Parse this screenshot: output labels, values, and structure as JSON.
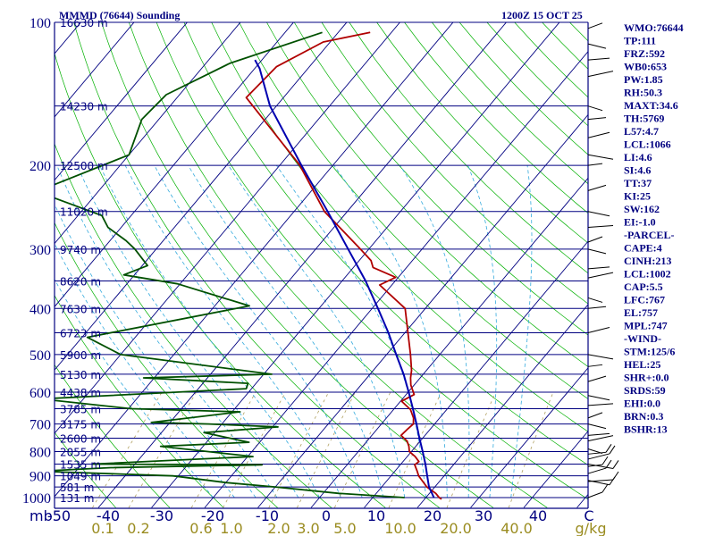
{
  "header": {
    "station": "MMMD (76644) Sounding",
    "time": "1200Z 15 OCT 25"
  },
  "colors": {
    "axis": "#000080",
    "isobar": "#000080",
    "isotherm": "#000080",
    "dry_adiabat": "#00b000",
    "moist_adiabat": "#33aadd",
    "mixing_ratio": "#b0a060",
    "temperature": "#b00000",
    "dewpoint": "#005000",
    "parcel": "#0000b0",
    "wind": "#000000"
  },
  "chart_data": {
    "type": "skew-t log-p",
    "pressure_axis": {
      "range_hpa": [
        1000,
        100
      ],
      "scale": "log",
      "ticks": [
        100,
        200,
        300,
        400,
        500,
        600,
        700,
        800,
        900,
        1000
      ],
      "unit_label": "mb"
    },
    "temperature_axis": {
      "ticks": [
        "-50",
        "-40",
        "-30",
        "-20",
        "-10",
        "0",
        "10",
        "20",
        "30",
        "40",
        "C"
      ],
      "unit": "C"
    },
    "mixing_ratio_axis": {
      "ticks": [
        "0.1",
        "0.2",
        "0.6",
        "1.0",
        "2.0",
        "3.0",
        "5.0",
        "10.0",
        "20.0",
        "40.0"
      ],
      "unit": "g/kg"
    },
    "height_labels": [
      {
        "p": 100,
        "label": "16630 m"
      },
      {
        "p": 150,
        "label": "14230 m"
      },
      {
        "p": 200,
        "label": "12500 m"
      },
      {
        "p": 250,
        "label": "11020 m"
      },
      {
        "p": 300,
        "label": "9740 m"
      },
      {
        "p": 350,
        "label": "8620 m"
      },
      {
        "p": 400,
        "label": "7630 m"
      },
      {
        "p": 450,
        "label": "6723 m"
      },
      {
        "p": 500,
        "label": "5900 m"
      },
      {
        "p": 550,
        "label": "5130 m"
      },
      {
        "p": 600,
        "label": "4438 m"
      },
      {
        "p": 650,
        "label": "3785 m"
      },
      {
        "p": 700,
        "label": "3175 m"
      },
      {
        "p": 750,
        "label": "2600 m"
      },
      {
        "p": 800,
        "label": "2055 m"
      },
      {
        "p": 850,
        "label": "1535 m"
      },
      {
        "p": 900,
        "label": "1049 m"
      },
      {
        "p": 950,
        "label": "581 m"
      },
      {
        "p": 1000,
        "label": "131 m"
      }
    ],
    "series": [
      {
        "key": "temperature",
        "points": [
          [
            105,
            -64
          ],
          [
            110,
            -71.3
          ],
          [
            124,
            -76.2
          ],
          [
            144,
            -77
          ],
          [
            200,
            -56.2
          ],
          [
            250,
            -44.3
          ],
          [
            300,
            -31.6
          ],
          [
            317,
            -27.8
          ],
          [
            328,
            -26.3
          ],
          [
            344,
            -20.5
          ],
          [
            357,
            -22.3
          ],
          [
            400,
            -13.8
          ],
          [
            500,
            -5.5
          ],
          [
            540,
            -2.8
          ],
          [
            560,
            -1.8
          ],
          [
            580,
            -0.6
          ],
          [
            607,
            1.5
          ],
          [
            627,
            0.2
          ],
          [
            653,
            3.2
          ],
          [
            680,
            5.1
          ],
          [
            700,
            6
          ],
          [
            720,
            5.7
          ],
          [
            740,
            5.5
          ],
          [
            760,
            7.5
          ],
          [
            780,
            8.7
          ],
          [
            800,
            9.6
          ],
          [
            820,
            11.5
          ],
          [
            840,
            13
          ],
          [
            853,
            12.7
          ],
          [
            880,
            14.2
          ],
          [
            900,
            15.2
          ],
          [
            950,
            18.5
          ],
          [
            980,
            21.2
          ],
          [
            1000,
            22.5
          ],
          [
            1008,
            23.2
          ]
        ]
      },
      {
        "key": "dewpoint",
        "points": [
          [
            105,
            -73
          ],
          [
            122,
            -85.5
          ],
          [
            142,
            -92.5
          ],
          [
            160,
            -93.2
          ],
          [
            190,
            -90
          ],
          [
            227,
            -101.5
          ],
          [
            255,
            -85.5
          ],
          [
            270,
            -82.5
          ],
          [
            288,
            -77
          ],
          [
            300,
            -74
          ],
          [
            325,
            -69
          ],
          [
            340,
            -72
          ],
          [
            355,
            -60.5
          ],
          [
            395,
            -43.5
          ],
          [
            460,
            -69
          ],
          [
            500,
            -60
          ],
          [
            550,
            -28.5
          ],
          [
            560,
            -52
          ],
          [
            575,
            -31.5
          ],
          [
            590,
            -31
          ],
          [
            620,
            -68
          ],
          [
            650,
            -49.5
          ],
          [
            660,
            -28.5
          ],
          [
            695,
            -43.5
          ],
          [
            700,
            -32.5
          ],
          [
            710,
            -19
          ],
          [
            730,
            -32
          ],
          [
            765,
            -22
          ],
          [
            780,
            -38
          ],
          [
            820,
            -19
          ],
          [
            850,
            -48
          ],
          [
            853,
            -16
          ],
          [
            865,
            -44
          ],
          [
            880,
            -57
          ],
          [
            900,
            -31
          ],
          [
            930,
            -20
          ],
          [
            950,
            -10
          ],
          [
            980,
            3
          ],
          [
            1000,
            16
          ]
        ]
      },
      {
        "key": "parcel",
        "points": [
          [
            1000,
            21.5
          ],
          [
            950,
            18.9
          ],
          [
            900,
            16.8
          ],
          [
            850,
            14.6
          ],
          [
            800,
            12.1
          ],
          [
            750,
            9.4
          ],
          [
            700,
            6.6
          ],
          [
            650,
            3.5
          ],
          [
            600,
            0.1
          ],
          [
            550,
            -3.7
          ],
          [
            500,
            -8.2
          ],
          [
            450,
            -13.1
          ],
          [
            400,
            -18.9
          ],
          [
            350,
            -25.6
          ],
          [
            300,
            -33.9
          ],
          [
            250,
            -43.7
          ],
          [
            200,
            -55.9
          ],
          [
            150,
            -71.2
          ],
          [
            125,
            -79.1
          ],
          [
            120,
            -81.3
          ]
        ]
      }
    ],
    "wind_barbs": [
      {
        "p": 103
      },
      {
        "p": 111
      },
      {
        "p": 120
      },
      {
        "p": 130
      },
      {
        "p": 150
      },
      {
        "p": 160
      },
      {
        "p": 175
      },
      {
        "p": 190
      },
      {
        "p": 200
      },
      {
        "p": 226
      },
      {
        "p": 250
      },
      {
        "p": 270
      },
      {
        "p": 290
      },
      {
        "p": 300
      },
      {
        "p": 330
      },
      {
        "p": 345
      },
      {
        "p": 380
      },
      {
        "p": 400
      },
      {
        "p": 450
      },
      {
        "p": 500
      },
      {
        "p": 530
      },
      {
        "p": 570
      },
      {
        "p": 610
      },
      {
        "p": 640
      },
      {
        "p": 680
      },
      {
        "p": 700
      },
      {
        "p": 740
      },
      {
        "p": 760
      },
      {
        "p": 790
      },
      {
        "p": 810
      },
      {
        "p": 830
      },
      {
        "p": 850
      },
      {
        "p": 860
      },
      {
        "p": 890
      },
      {
        "p": 920
      },
      {
        "p": 925
      },
      {
        "p": 1000
      }
    ],
    "indices": [
      "WMO:76644",
      "TP:111",
      "FRZ:592",
      "WB0:653",
      "PW:1.85",
      "RH:50.3",
      "MAXT:34.6",
      "TH:5769",
      "L57:4.7",
      "LCL:1066",
      "LI:4.6",
      "SI:4.6",
      "TT:37",
      "KI:25",
      "SW:162",
      "EI:-1.0",
      "-PARCEL-",
      "CAPE:4",
      "CINH:213",
      "LCL:1002",
      "CAP:5.5",
      "LFC:767",
      "EL:757",
      "MPL:747",
      "-WIND-",
      "STM:125/6",
      "HEL:25",
      "SHR+:0.0",
      "SRDS:59",
      "EHI:0.0",
      "BRN:0.3",
      "BSHR:13"
    ]
  }
}
